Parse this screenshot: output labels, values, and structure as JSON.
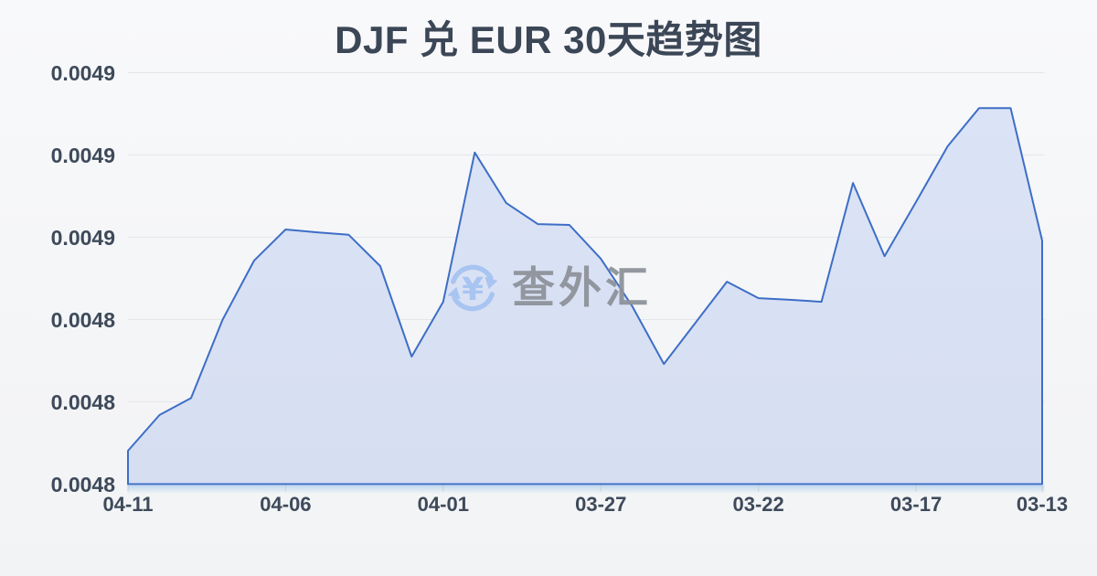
{
  "title": "DJF 兑 EUR 30天趋势图",
  "watermark": {
    "logo_symbol": "¥",
    "text": "查外汇",
    "logo_color": "#a6c3f1",
    "text_color": "#8e939b"
  },
  "colors": {
    "line": "#3d6ec6",
    "fill_top": "#dbe3f6",
    "fill_bottom": "#d6def1",
    "grid": "#e4e6ea",
    "axis_label": "#3e4a5a",
    "tick": "#c9cdd3",
    "title": "#3b4656",
    "background": "#f5f6f8"
  },
  "chart_data": {
    "type": "area",
    "title": "DJF 兑 EUR 30天趋势图",
    "xlabel": "",
    "ylabel": "",
    "grid": true,
    "legend_position": "none",
    "ylim": [
      0.0048,
      0.0049
    ],
    "y_ticks": [
      0.0048,
      0.00482,
      0.00484,
      0.00486,
      0.00488,
      0.0049
    ],
    "y_tick_labels": [
      "0.0048",
      "0.0048",
      "0.0048",
      "0.0049",
      "0.0049",
      "0.0049"
    ],
    "x_tick_labels": [
      "04-11",
      "04-06",
      "04-01",
      "03-27",
      "03-22",
      "03-17",
      "03-13"
    ],
    "x_tick_indices": [
      0,
      5,
      10,
      15,
      20,
      25,
      29
    ],
    "x": [
      "04-11",
      "04-10",
      "04-09",
      "04-08",
      "04-07",
      "04-06",
      "04-05",
      "04-04",
      "04-03",
      "04-02",
      "04-01",
      "03-31",
      "03-30",
      "03-29",
      "03-28",
      "03-27",
      "03-26",
      "03-25",
      "03-24",
      "03-23",
      "03-22",
      "03-21",
      "03-20",
      "03-19",
      "03-18",
      "03-17",
      "03-16",
      "03-15",
      "03-14",
      "03-13"
    ],
    "values": [
      0.0048081,
      0.0048168,
      0.0048209,
      0.0048399,
      0.0048543,
      0.0048619,
      0.0048612,
      0.0048606,
      0.004853,
      0.004831,
      0.0048443,
      0.0048806,
      0.0048683,
      0.0048632,
      0.004863,
      0.0048548,
      0.0048432,
      0.0048292,
      0.0048392,
      0.0048492,
      0.0048452,
      0.0048448,
      0.0048443,
      0.0048732,
      0.0048554,
      0.0048686,
      0.0048821,
      0.0048914,
      0.0048914,
      0.0048592
    ]
  }
}
